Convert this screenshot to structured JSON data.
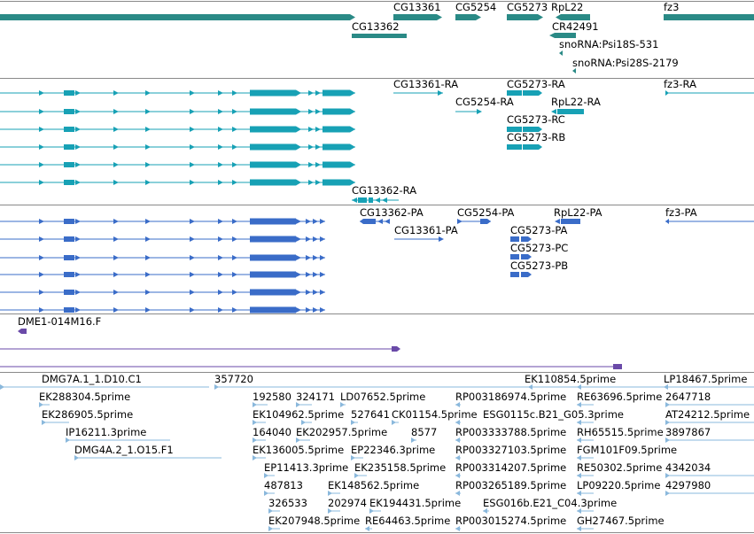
{
  "colors": {
    "gene": "#2a8a86",
    "transcript": "#17a1b5",
    "protein": "#3a6cc8",
    "clone": "#6a4aa8",
    "est": "#8ab8dc",
    "divider": "#8a8a8a"
  },
  "tracks": {
    "genes": {
      "labels": [
        "CG13361",
        "CG5254",
        "CG5273",
        "RpL22",
        "fz3",
        "CG13362",
        "CR42491",
        "snoRNA:Psi18S-531",
        "snoRNA:Psi28S-2179"
      ]
    },
    "transcripts": {
      "labels": [
        "CG13361-RA",
        "CG5273-RA",
        "fz3-RA",
        "CG5254-RA",
        "RpL22-RA",
        "CG5273-RC",
        "CG5273-RB",
        "CG13362-RA"
      ]
    },
    "proteins": {
      "labels": [
        "CG13362-PA",
        "CG5254-PA",
        "RpL22-PA",
        "fz3-PA",
        "CG13361-PA",
        "CG5273-PA",
        "CG5273-PC",
        "CG5273-PB"
      ]
    },
    "clones": {
      "labels": [
        "DME1-014M16.F"
      ]
    },
    "ests": {
      "labels": [
        "DMG7A.1_1.D10.C1",
        "357720",
        "EK110854.5prime",
        "LP18467.5prime",
        "EK288304.5prime",
        "192580",
        "324171",
        "LD07652.5prime",
        "RP003186974.5prime",
        "RE63696.5prime",
        "2647718",
        "EK286905.5prime",
        "EK104962.5prime",
        "527641",
        "CK01154.5prime",
        "ESG0115c.B21_G05.3prime",
        "AT24212.5prime",
        "IP16211.3prime",
        "164040",
        "EK202957.5prime",
        "8577",
        "RP003333788.5prime",
        "RH65515.5prime",
        "3897867",
        "DMG4A.2_1.O15.F1",
        "EK136005.5prime",
        "EP22346.3prime",
        "RP003327103.5prime",
        "FGM101F09.5prime",
        "EP11413.3prime",
        "EK235158.5prime",
        "RP003314207.5prime",
        "RE50302.5prime",
        "4342034",
        "487813",
        "EK148562.5prime",
        "RP003265189.5prime",
        "LP09220.5prime",
        "4297980",
        "326533",
        "202974",
        "EK194431.5prime",
        "ESG016b.E21_C04.3prime",
        "EK207948.5prime",
        "RE64463.5prime",
        "RP003015274.5prime",
        "GH27467.5prime"
      ]
    }
  }
}
